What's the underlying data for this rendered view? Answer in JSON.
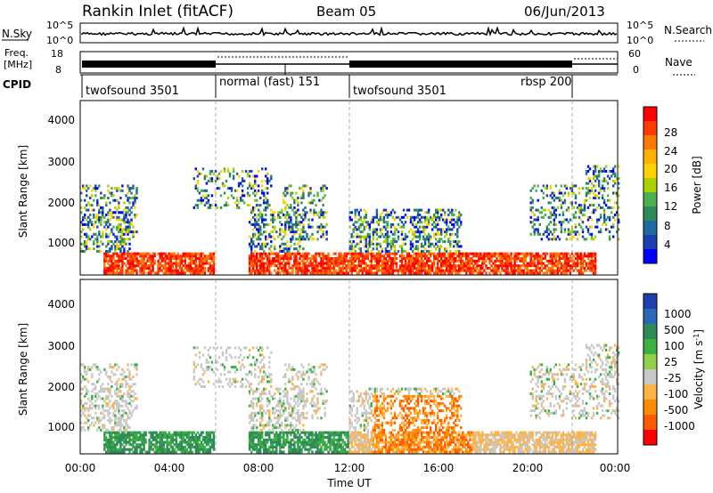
{
  "header": {
    "title": "Rankin Inlet (fitACF)",
    "beam": "Beam 05",
    "date": "06/Jun/2013"
  },
  "top_panels": {
    "nsky_label": "N.Sky",
    "nsky_ticks": [
      "10^5",
      "10^0"
    ],
    "nsearch_label": "N.Search",
    "nsearch_ticks": [
      "10^5",
      "10^0"
    ],
    "freq_label": "Freq.",
    "freq_unit": "[MHz]",
    "freq_ticks": [
      "18",
      "8"
    ],
    "nave_label": "Nave",
    "nave_ticks": [
      "60",
      "0"
    ],
    "cpid_label": "CPID",
    "cpid_segments": [
      {
        "label": "twofsound 3501",
        "start": 0,
        "end": 6
      },
      {
        "label": "normal (fast) 151",
        "start": 6,
        "end": 12
      },
      {
        "label": "twofsound 3501",
        "start": 12,
        "end": 22
      },
      {
        "label": "rbsp 200",
        "start": 22,
        "end": 24
      }
    ]
  },
  "colorbars": {
    "power": {
      "label": "Power [dB]",
      "ticks": [
        "28",
        "24",
        "20",
        "16",
        "12",
        "8",
        "4"
      ],
      "colors": [
        "#ff0000",
        "#ff3a00",
        "#ff7a00",
        "#ffb000",
        "#ffd200",
        "#aad000",
        "#4caf50",
        "#2e8b57",
        "#1e6aa0",
        "#1a3fb0",
        "#0000ff"
      ]
    },
    "velocity": {
      "label": "Velocity [m s",
      "label_sup": "-1",
      "label_end": "]",
      "ticks": [
        "1000",
        "500",
        "100",
        "25",
        "-25",
        "-100",
        "-500",
        "-1000"
      ],
      "colors": [
        "#1f3fae",
        "#2b66b8",
        "#2e8b57",
        "#3cb043",
        "#8fd24a",
        "#c8c8c8",
        "#ffb347",
        "#ff8c00",
        "#ff5a00",
        "#ff0000"
      ]
    }
  },
  "chart_data": [
    {
      "type": "heatmap",
      "name": "Power",
      "ylabel": "Slant Range [km]",
      "yticks": [
        "4000",
        "3000",
        "2000",
        "1000"
      ],
      "ylim": [
        180,
        4500
      ],
      "xlim": [
        0,
        24
      ],
      "value_range": [
        0,
        30
      ]
    },
    {
      "type": "heatmap",
      "name": "Velocity",
      "ylabel": "Slant Range [km]",
      "yticks": [
        "4000",
        "3000",
        "2000",
        "1000"
      ],
      "ylim": [
        180,
        4500
      ],
      "xlim": [
        0,
        24
      ],
      "value_range": [
        -1000,
        1000
      ]
    }
  ],
  "xaxis": {
    "label": "Time UT",
    "ticks": [
      "00:00",
      "04:00",
      "08:00",
      "12:00",
      "16:00",
      "20:00",
      "00:00"
    ]
  }
}
